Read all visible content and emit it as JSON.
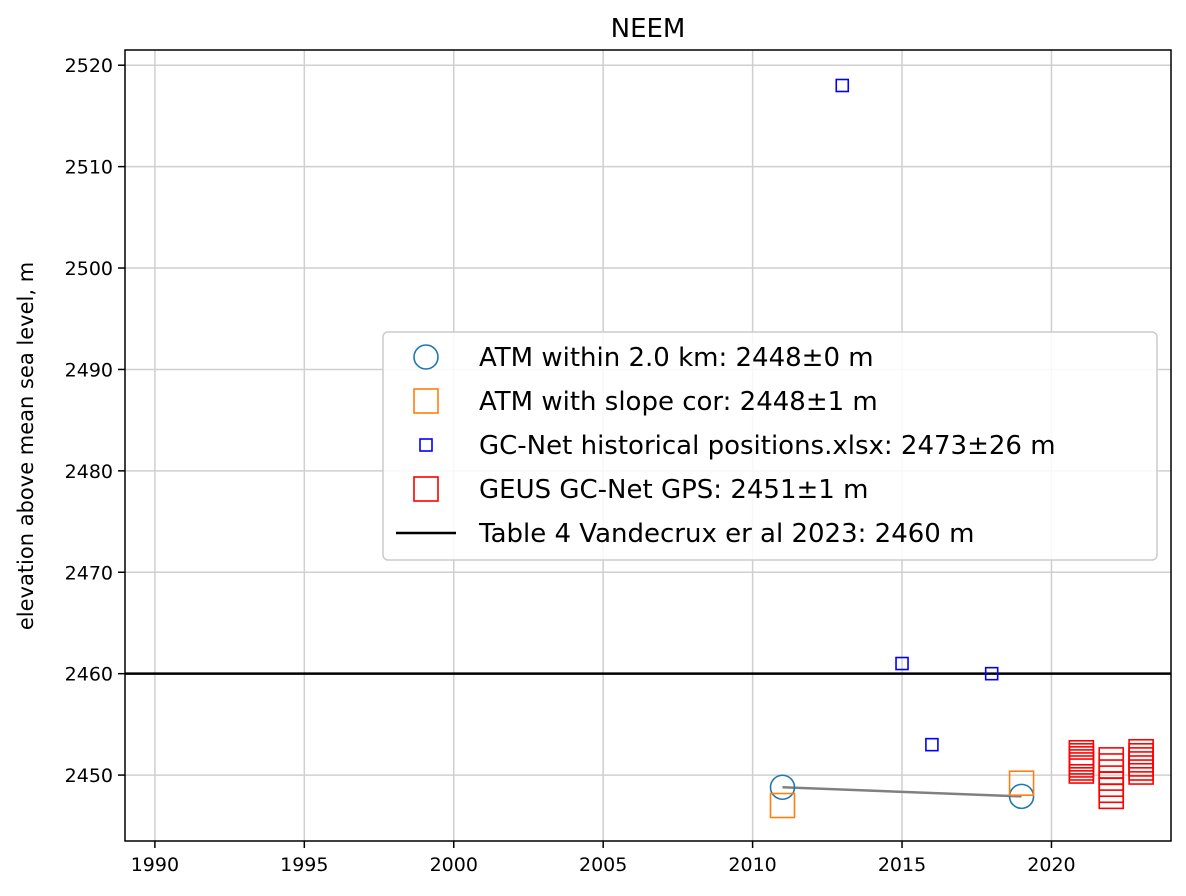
{
  "chart_data": {
    "type": "scatter",
    "title": "NEEM",
    "xlabel": "",
    "ylabel": "elevation above mean sea level, m",
    "xlim": [
      1989,
      2024
    ],
    "ylim": [
      2443.5,
      2521.5
    ],
    "xticks": [
      1990,
      1995,
      2000,
      2005,
      2010,
      2015,
      2020
    ],
    "yticks": [
      2450,
      2460,
      2470,
      2480,
      2490,
      2500,
      2510,
      2520
    ],
    "grid": true,
    "legend_position": "center-right",
    "series": [
      {
        "name": "ATM within 2.0 km: 2448±0 m",
        "marker": "circle",
        "size": "large",
        "color": "#1f77b4",
        "points": [
          [
            2011,
            2448.8
          ],
          [
            2019,
            2447.9
          ]
        ]
      },
      {
        "name": "ATM with slope cor: 2448±1 m",
        "marker": "square",
        "size": "large",
        "color": "#ff7f0e",
        "points": [
          [
            2011,
            2447.0
          ],
          [
            2019,
            2449.2
          ]
        ]
      },
      {
        "name": "GC-Net historical positions.xlsx: 2473±26 m",
        "marker": "square",
        "size": "small",
        "color": "#0000ff",
        "points": [
          [
            2013,
            2518
          ],
          [
            2015,
            2461
          ],
          [
            2016,
            2453
          ],
          [
            2018,
            2460
          ]
        ]
      },
      {
        "name": "GEUS GC-Net GPS: 2451±1 m",
        "marker": "square",
        "size": "large",
        "color": "#ff0000",
        "points": [
          [
            2021,
            2452.2
          ],
          [
            2021,
            2451.9
          ],
          [
            2021,
            2451.6
          ],
          [
            2021,
            2451.3
          ],
          [
            2021,
            2451.0
          ],
          [
            2021,
            2450.7
          ],
          [
            2021,
            2450.4
          ],
          [
            2022,
            2451.5
          ],
          [
            2022,
            2450.9
          ],
          [
            2022,
            2450.3
          ],
          [
            2022,
            2449.7
          ],
          [
            2022,
            2449.1
          ],
          [
            2022,
            2448.5
          ],
          [
            2022,
            2447.9
          ],
          [
            2023,
            2452.3
          ],
          [
            2023,
            2451.9
          ],
          [
            2023,
            2451.5
          ],
          [
            2023,
            2451.1
          ],
          [
            2023,
            2450.7
          ],
          [
            2023,
            2450.3
          ]
        ]
      }
    ],
    "trend_line": {
      "color": "#808080",
      "points": [
        [
          2011,
          2448.8
        ],
        [
          2019,
          2447.9
        ]
      ]
    },
    "reference_line": {
      "name": "Table 4 Vandecrux er al 2023: 2460 m",
      "y": 2460,
      "color": "#000000"
    }
  }
}
